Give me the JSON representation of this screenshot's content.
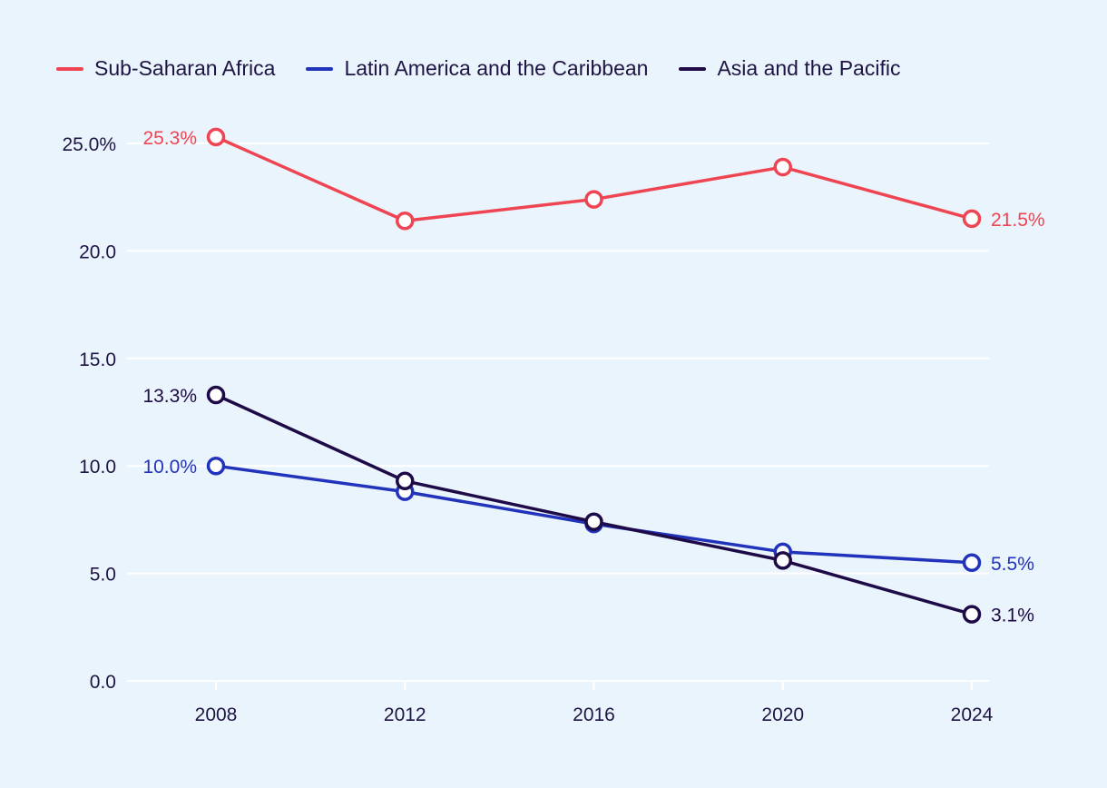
{
  "chart_data": {
    "type": "line",
    "x": [
      "2008",
      "2012",
      "2016",
      "2020",
      "2024"
    ],
    "ylim": [
      0,
      25
    ],
    "yticks": [
      {
        "value": 25,
        "label": "25.0%"
      },
      {
        "value": 20,
        "label": "20.0"
      },
      {
        "value": 15,
        "label": "15.0"
      },
      {
        "value": 10,
        "label": "10.0"
      },
      {
        "value": 5,
        "label": "5.0"
      },
      {
        "value": 0,
        "label": "0.0"
      }
    ],
    "grid": true,
    "legend_position": "top-left",
    "series": [
      {
        "name": "Sub-Saharan Africa",
        "color": "#ef4452",
        "values": [
          25.3,
          21.4,
          22.4,
          23.9,
          21.5
        ],
        "start_label": "25.3%",
        "end_label": "21.5%"
      },
      {
        "name": "Latin America and the Caribbean",
        "color": "#2233bb",
        "values": [
          10.0,
          8.8,
          7.3,
          6.0,
          5.5
        ],
        "start_label": "10.0%",
        "end_label": "5.5%"
      },
      {
        "name": "Asia and the Pacific",
        "color": "#1e0a46",
        "values": [
          13.3,
          9.3,
          7.4,
          5.6,
          3.1
        ],
        "start_label": "13.3%",
        "end_label": "3.1%"
      }
    ]
  }
}
